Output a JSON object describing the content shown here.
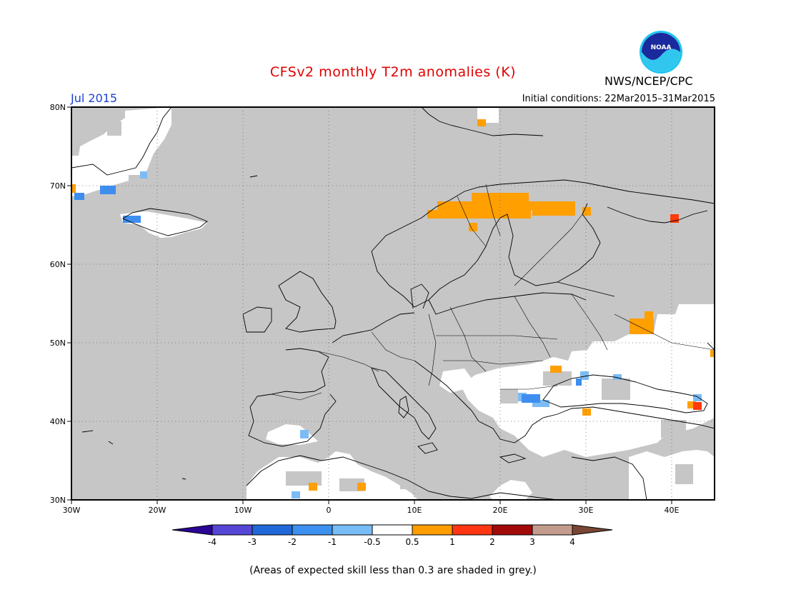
{
  "header": {
    "title": "CFSv2 monthly T2m anomalies (K)",
    "month": "Jul 2015",
    "initial_conditions": "Initial conditions: 22Mar2015–31Mar2015",
    "agency": "NWS/NCEP/CPC",
    "logo_text": "NOAA"
  },
  "map": {
    "region": "Europe",
    "lon_range": [
      -30,
      45
    ],
    "lat_range": [
      30,
      80
    ],
    "lat_ticks": [
      "30N",
      "40N",
      "50N",
      "60N",
      "70N",
      "80N"
    ],
    "lon_ticks": [
      "30W",
      "20W",
      "10W",
      "0",
      "10E",
      "20E",
      "30E",
      "40E"
    ],
    "colors": {
      "skill_grey": "#c6c6c6",
      "neutral": "#ffffff",
      "warm_1": "#ff9f00",
      "warm_2": "#ff3a0a",
      "cool_1": "#7cbcf5",
      "cool_2": "#3e8ef0"
    }
  },
  "colorbar": {
    "labels": [
      "-4",
      "-3",
      "-2",
      "-1",
      "-0.5",
      "0.5",
      "1",
      "2",
      "3",
      "4"
    ],
    "colors": [
      "#2a0596",
      "#5546d6",
      "#1f68d8",
      "#3c90ef",
      "#78bcf6",
      "#ffffff",
      "#ff9c00",
      "#ff3612",
      "#a20a0a",
      "#c49c8e",
      "#7a4634"
    ]
  },
  "footnote": "(Areas of expected skill less than 0.3 are shaded in grey.)"
}
